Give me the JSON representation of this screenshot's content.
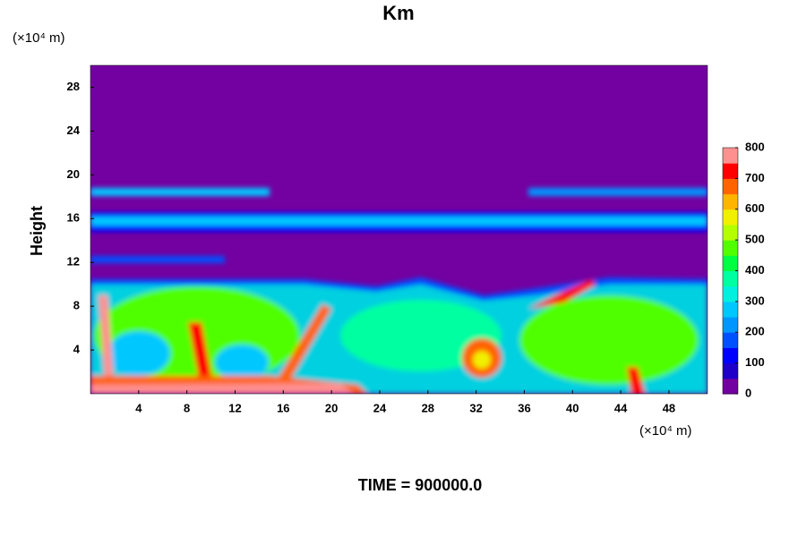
{
  "chart_data": {
    "type": "contour",
    "title": "Km",
    "x_unit": "(×10⁴ m)",
    "y_unit": "(×10⁴ m)",
    "ylabel": "Height",
    "footer": "TIME = 900000.0",
    "xlim": [
      0,
      51.2
    ],
    "ylim": [
      0,
      30
    ],
    "xticks": [
      4,
      8,
      12,
      16,
      20,
      24,
      28,
      32,
      36,
      40,
      44,
      48
    ],
    "yticks": [
      4,
      8,
      12,
      16,
      20,
      24,
      28
    ],
    "colorbar": {
      "lim": [
        0,
        800
      ],
      "ticks": [
        0,
        100,
        200,
        300,
        400,
        500,
        600,
        700,
        800
      ],
      "colors": [
        "#7300a0",
        "#1e00c8",
        "#0000ff",
        "#0050ff",
        "#0096ff",
        "#00c8ff",
        "#00f0e0",
        "#00ffa0",
        "#00ff40",
        "#50ff00",
        "#b4ff00",
        "#f0f000",
        "#ffb400",
        "#ff6400",
        "#ff0000",
        "#ff9090"
      ]
    }
  }
}
